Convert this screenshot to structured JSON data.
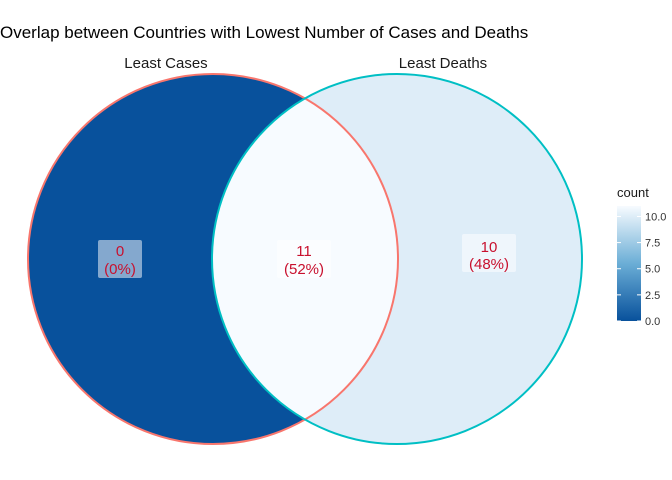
{
  "chart_data": {
    "type": "venn",
    "title": "Overlap between Countries with Lowest Number of Cases and Deaths",
    "sets": [
      {
        "name": "Least Cases",
        "border_color": "#F8766D"
      },
      {
        "name": "Least Deaths",
        "border_color": "#00BFC4"
      }
    ],
    "regions": [
      {
        "id": "only_cases",
        "sets": [
          "Least Cases"
        ],
        "count": 0,
        "percent": "(0%)"
      },
      {
        "id": "both",
        "sets": [
          "Least Cases",
          "Least Deaths"
        ],
        "count": 11,
        "percent": "(52%)"
      },
      {
        "id": "only_deaths",
        "sets": [
          "Least Deaths"
        ],
        "count": 10,
        "percent": "(48%)"
      }
    ],
    "legend": {
      "title": "count",
      "ticks": [
        "0.0",
        "2.5",
        "5.0",
        "7.5",
        "10.0"
      ],
      "tick_values": [
        0,
        2.5,
        5,
        7.5,
        10
      ],
      "range": [
        0,
        11
      ],
      "low_color": "#08519C",
      "mid_color": "#6BAED6",
      "high_color": "#F7FBFF",
      "placement": "right"
    }
  }
}
